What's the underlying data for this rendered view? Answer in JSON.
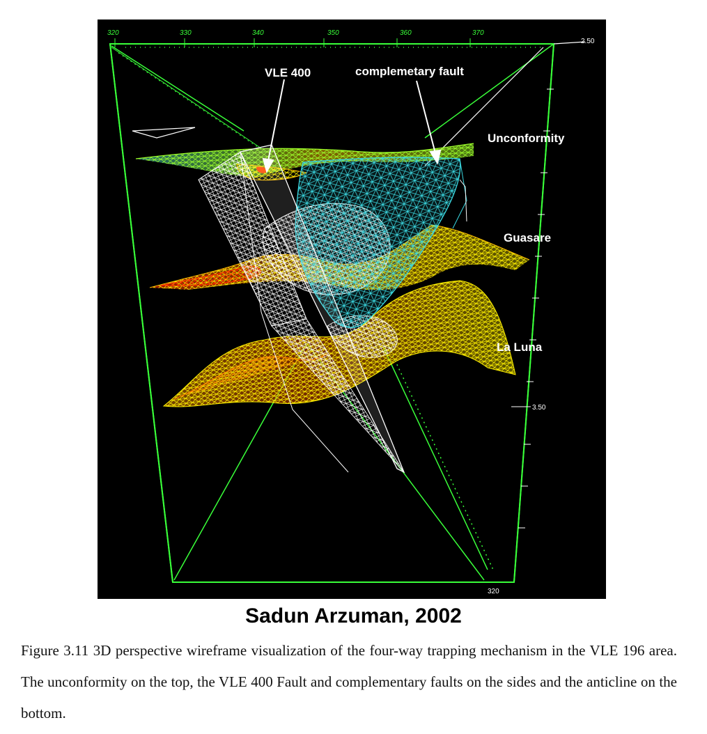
{
  "figure": {
    "labels": {
      "vle400": "VLE 400",
      "complementary_fault": "complemetary fault",
      "unconformity": "Unconformity",
      "guasare": "Guasare",
      "laluna": "La Luna"
    },
    "top_axis_ticks": [
      "320",
      "330",
      "340",
      "350",
      "360",
      "370"
    ],
    "right_axis_ticks": [
      "2.50",
      "3.50"
    ],
    "corner_tick": "320",
    "colors": {
      "background": "#000000",
      "frame": "#39ff39",
      "fault": "#ffffff",
      "complementary_fault": "#3ad7e0",
      "horizon_hot": "#ff2a00",
      "horizon_warm": "#ffc000",
      "horizon_cool": "#fff200"
    }
  },
  "credit": "Sadun Arzuman, 2002",
  "caption": "Figure 3.11 3D perspective wireframe visualization of the four-way trapping mechanism in the VLE 196 area. The unconformity on the top, the VLE 400 Fault and complementary faults on the sides and the anticline on the bottom."
}
